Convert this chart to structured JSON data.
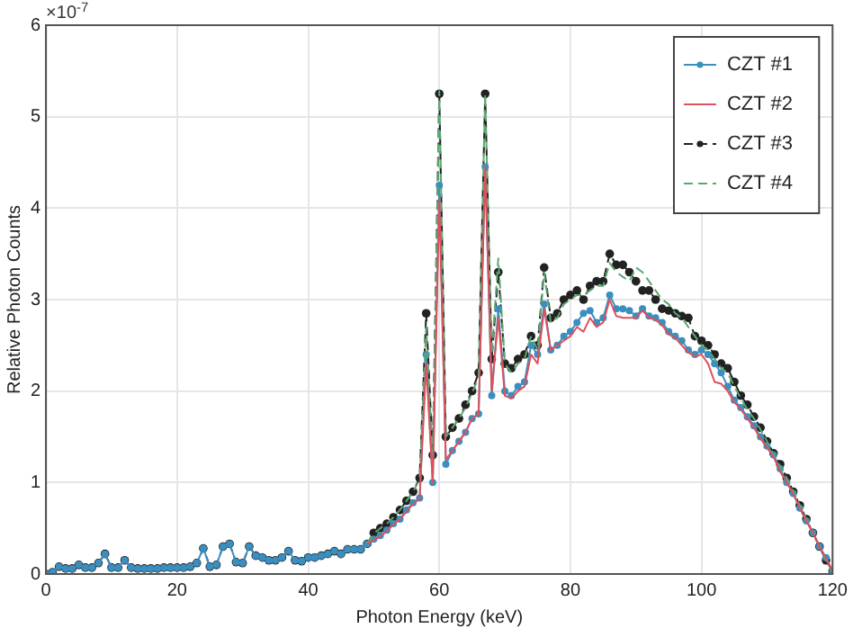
{
  "chart_data": {
    "type": "line",
    "xlabel": "Photon Energy (keV)",
    "ylabel": "Relative Photon Counts",
    "annotations": [
      "×10$^{-7}$"
    ],
    "x": [
      0,
      1,
      2,
      3,
      4,
      5,
      6,
      7,
      8,
      9,
      10,
      11,
      12,
      13,
      14,
      15,
      16,
      17,
      18,
      19,
      20,
      21,
      22,
      23,
      24,
      25,
      26,
      27,
      28,
      29,
      30,
      31,
      32,
      33,
      34,
      35,
      36,
      37,
      38,
      39,
      40,
      41,
      42,
      43,
      44,
      45,
      46,
      47,
      48,
      49,
      50,
      51,
      52,
      53,
      54,
      55,
      56,
      57,
      58,
      59,
      60,
      61,
      62,
      63,
      64,
      65,
      66,
      67,
      68,
      69,
      70,
      71,
      72,
      73,
      74,
      75,
      76,
      77,
      78,
      79,
      80,
      81,
      82,
      83,
      84,
      85,
      86,
      87,
      88,
      89,
      90,
      91,
      92,
      93,
      94,
      95,
      96,
      97,
      98,
      99,
      100,
      101,
      102,
      103,
      104,
      105,
      106,
      107,
      108,
      109,
      110,
      111,
      112,
      113,
      114,
      115,
      116,
      117,
      118,
      119,
      120
    ],
    "xlim": [
      0,
      120
    ],
    "xticks": [
      0,
      20,
      40,
      60,
      80,
      100,
      120
    ],
    "ylim": [
      0,
      6
    ],
    "yticks": [
      0,
      1,
      2,
      3,
      4,
      5,
      6
    ],
    "grid": true,
    "legend": "top right",
    "series": [
      {
        "name": "CZT #1",
        "color": "#3a8fc0",
        "marker": "circle",
        "line_style": "solid",
        "values": [
          0,
          0.02,
          0.08,
          0.06,
          0.06,
          0.1,
          0.07,
          0.07,
          0.12,
          0.22,
          0.07,
          0.07,
          0.15,
          0.07,
          0.06,
          0.06,
          0.06,
          0.06,
          0.07,
          0.07,
          0.07,
          0.07,
          0.08,
          0.12,
          0.28,
          0.08,
          0.1,
          0.3,
          0.33,
          0.13,
          0.12,
          0.3,
          0.2,
          0.18,
          0.15,
          0.15,
          0.18,
          0.25,
          0.15,
          0.14,
          0.18,
          0.18,
          0.2,
          0.22,
          0.25,
          0.22,
          0.27,
          0.27,
          0.27,
          0.33,
          0.38,
          0.42,
          0.48,
          0.55,
          0.6,
          0.7,
          0.78,
          0.83,
          2.4,
          1.0,
          4.25,
          1.2,
          1.35,
          1.45,
          1.55,
          1.7,
          1.75,
          4.45,
          1.95,
          2.9,
          2.0,
          1.95,
          2.05,
          2.1,
          2.5,
          2.4,
          2.95,
          2.45,
          2.5,
          2.6,
          2.65,
          2.75,
          2.85,
          2.88,
          2.75,
          2.8,
          3.05,
          2.9,
          2.9,
          2.88,
          2.82,
          2.9,
          2.82,
          2.8,
          2.75,
          2.65,
          2.6,
          2.55,
          2.45,
          2.4,
          2.45,
          2.4,
          2.3,
          2.2,
          2.05,
          1.9,
          1.82,
          1.72,
          1.62,
          1.5,
          1.4,
          1.3,
          1.15,
          1.0,
          0.88,
          0.72,
          0.58,
          0.45,
          0.3,
          0.18,
          0.03
        ]
      },
      {
        "name": "CZT #2",
        "color": "#e0505a",
        "marker": "none",
        "line_style": "solid",
        "values": [
          null,
          null,
          null,
          null,
          null,
          null,
          null,
          null,
          null,
          null,
          null,
          null,
          null,
          null,
          null,
          null,
          null,
          null,
          null,
          null,
          null,
          null,
          null,
          null,
          null,
          null,
          null,
          null,
          null,
          null,
          null,
          null,
          null,
          null,
          null,
          null,
          null,
          null,
          null,
          null,
          null,
          null,
          null,
          null,
          null,
          null,
          null,
          null,
          null,
          0.33,
          0.37,
          0.41,
          0.47,
          0.54,
          0.6,
          0.68,
          0.77,
          0.82,
          2.3,
          1.0,
          4.1,
          1.25,
          1.35,
          1.45,
          1.55,
          1.7,
          1.75,
          4.45,
          2.0,
          2.8,
          1.95,
          1.92,
          2.0,
          2.05,
          2.4,
          2.3,
          2.9,
          2.45,
          2.5,
          2.55,
          2.6,
          2.7,
          2.65,
          2.8,
          2.7,
          2.75,
          3.0,
          2.82,
          2.8,
          2.8,
          2.8,
          2.88,
          2.8,
          2.78,
          2.72,
          2.62,
          2.58,
          2.5,
          2.42,
          2.38,
          2.4,
          2.3,
          2.1,
          2.08,
          2.0,
          1.88,
          1.8,
          1.7,
          1.6,
          1.48,
          1.38,
          1.28,
          1.12,
          1.0,
          0.88,
          0.72,
          0.58,
          0.45,
          0.3,
          0.17,
          0.03
        ]
      },
      {
        "name": "CZT #3",
        "color": "#222222",
        "marker": "circle",
        "line_style": "dashed",
        "values": [
          0,
          0.02,
          0.08,
          0.06,
          0.06,
          0.1,
          0.07,
          0.07,
          0.12,
          0.22,
          0.07,
          0.07,
          0.15,
          0.07,
          0.06,
          0.06,
          0.06,
          0.06,
          0.07,
          0.07,
          0.07,
          0.07,
          0.08,
          0.12,
          0.28,
          0.08,
          0.1,
          0.3,
          0.33,
          0.13,
          0.12,
          0.3,
          0.2,
          0.18,
          0.15,
          0.15,
          0.18,
          0.25,
          0.15,
          0.14,
          0.18,
          0.18,
          0.2,
          0.22,
          0.25,
          0.22,
          0.27,
          0.27,
          0.27,
          0.33,
          0.45,
          0.5,
          0.55,
          0.62,
          0.7,
          0.8,
          0.9,
          1.05,
          2.85,
          1.3,
          5.25,
          1.5,
          1.6,
          1.7,
          1.85,
          2.0,
          2.2,
          5.25,
          2.35,
          3.3,
          2.3,
          2.25,
          2.35,
          2.4,
          2.6,
          2.5,
          3.35,
          2.8,
          2.85,
          3.0,
          3.05,
          3.1,
          3.0,
          3.15,
          3.2,
          3.2,
          3.5,
          3.38,
          3.38,
          3.3,
          3.2,
          3.1,
          3.1,
          3.0,
          2.9,
          2.88,
          2.85,
          2.82,
          2.8,
          2.6,
          2.55,
          2.5,
          2.4,
          2.3,
          2.25,
          2.1,
          1.95,
          1.85,
          1.72,
          1.6,
          1.45,
          1.32,
          1.2,
          1.05,
          0.9,
          0.75,
          0.6,
          0.45,
          0.3,
          0.15,
          0.03
        ]
      },
      {
        "name": "CZT #4",
        "color": "#5aa870",
        "marker": "none",
        "line_style": "dashed",
        "values": [
          null,
          null,
          null,
          null,
          null,
          null,
          null,
          null,
          null,
          null,
          null,
          null,
          null,
          null,
          null,
          null,
          null,
          null,
          null,
          null,
          null,
          null,
          null,
          null,
          null,
          null,
          null,
          null,
          null,
          null,
          null,
          null,
          null,
          null,
          null,
          null,
          null,
          null,
          null,
          null,
          null,
          null,
          null,
          null,
          null,
          null,
          null,
          null,
          null,
          0.33,
          0.44,
          0.5,
          0.55,
          0.62,
          0.7,
          0.8,
          0.9,
          1.03,
          2.7,
          1.25,
          5.28,
          1.5,
          1.6,
          1.7,
          1.82,
          1.98,
          2.15,
          5.25,
          2.4,
          3.45,
          2.3,
          2.2,
          2.3,
          2.35,
          2.6,
          2.45,
          3.3,
          2.75,
          2.8,
          2.95,
          3.0,
          3.05,
          3.05,
          3.1,
          3.15,
          3.15,
          3.4,
          3.3,
          3.25,
          3.2,
          3.35,
          3.3,
          3.2,
          3.1,
          3.0,
          2.95,
          2.85,
          2.8,
          2.7,
          2.6,
          2.5,
          2.45,
          2.35,
          2.25,
          2.2,
          2.05,
          1.92,
          1.8,
          1.7,
          1.58,
          1.45,
          1.3,
          1.18,
          1.05,
          0.9,
          0.75,
          0.6,
          0.45,
          0.3,
          0.15,
          0.03
        ]
      }
    ]
  }
}
